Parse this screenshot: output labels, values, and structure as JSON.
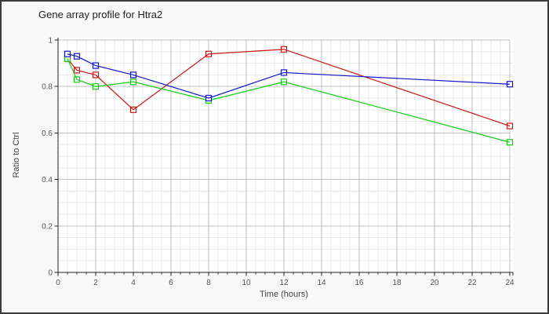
{
  "frame": {
    "background": "#f8f8f8",
    "plot_background": "#ffffff",
    "border_color": "#3c3c3c",
    "axis_color": "#222222",
    "grid_major_color": "#bfbfbf",
    "grid_minor_color": "#e9e9e9",
    "tick_label_color": "#555555",
    "axis_title_color": "#444444",
    "title_color": "#1f1f1f"
  },
  "chart_data": {
    "type": "line",
    "title": "Gene array profile for Htra2",
    "xlabel": "Time (hours)",
    "ylabel": "Ratio to Ctrl",
    "x": [
      0.5,
      1,
      2,
      4,
      8,
      12,
      24
    ],
    "series": [
      {
        "name": "red",
        "color": "#cc1414",
        "marker": "open-square",
        "values": [
          0.92,
          0.87,
          0.85,
          0.7,
          0.94,
          0.96,
          0.63
        ]
      },
      {
        "name": "green",
        "color": "#14cc14",
        "marker": "open-square",
        "values": [
          0.92,
          0.83,
          0.8,
          0.82,
          0.74,
          0.82,
          0.56
        ]
      },
      {
        "name": "blue",
        "color": "#1414cc",
        "marker": "open-square",
        "values": [
          0.94,
          0.93,
          0.89,
          0.85,
          0.75,
          0.86,
          0.81
        ]
      }
    ],
    "xlim": [
      0,
      24
    ],
    "ylim": [
      0,
      1
    ],
    "x_major_ticks": [
      0,
      2,
      4,
      6,
      8,
      10,
      12,
      14,
      16,
      18,
      20,
      22,
      24
    ],
    "x_minor_step": 0.5,
    "y_major_ticks": [
      0,
      0.2,
      0.4,
      0.6,
      0.8,
      1
    ],
    "y_minor_step": 0.05,
    "grid": "major+minor",
    "legend": "none"
  }
}
